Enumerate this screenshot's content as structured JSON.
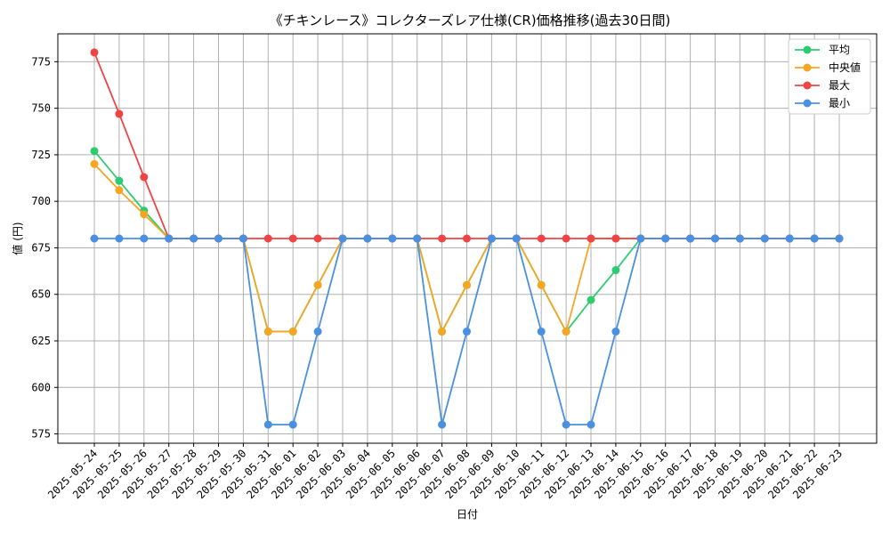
{
  "chart_data": {
    "type": "line",
    "title": "《チキンレース》コレクターズレア仕様(CR)価格推移(過去30日間)",
    "xlabel": "日付",
    "ylabel": "値 (円)",
    "ylim": [
      570,
      790
    ],
    "yticks": [
      575,
      600,
      625,
      650,
      675,
      700,
      725,
      750,
      775
    ],
    "grid": true,
    "legend_position": "top-right",
    "categories": [
      "2025-05-24",
      "2025-05-25",
      "2025-05-26",
      "2025-05-27",
      "2025-05-28",
      "2025-05-29",
      "2025-05-30",
      "2025-05-31",
      "2025-06-01",
      "2025-06-02",
      "2025-06-03",
      "2025-06-04",
      "2025-06-05",
      "2025-06-06",
      "2025-06-07",
      "2025-06-08",
      "2025-06-09",
      "2025-06-10",
      "2025-06-11",
      "2025-06-12",
      "2025-06-13",
      "2025-06-14",
      "2025-06-15",
      "2025-06-16",
      "2025-06-17",
      "2025-06-18",
      "2025-06-19",
      "2025-06-20",
      "2025-06-21",
      "2025-06-22",
      "2025-06-23"
    ],
    "series": [
      {
        "name": "平均",
        "color": "#2ecc71",
        "values": [
          727,
          711,
          695,
          680,
          680,
          680,
          680,
          630,
          630,
          655,
          680,
          680,
          680,
          680,
          630,
          655,
          680,
          680,
          655,
          630,
          647,
          663,
          680,
          680,
          680,
          680,
          680,
          680,
          680,
          680,
          680
        ]
      },
      {
        "name": "中央値",
        "color": "#f5a623",
        "values": [
          720,
          706,
          693,
          680,
          680,
          680,
          680,
          630,
          630,
          655,
          680,
          680,
          680,
          680,
          630,
          655,
          680,
          680,
          655,
          630,
          680,
          680,
          680,
          680,
          680,
          680,
          680,
          680,
          680,
          680,
          680
        ]
      },
      {
        "name": "最大",
        "color": "#ef4444",
        "values": [
          780,
          747,
          713,
          680,
          680,
          680,
          680,
          680,
          680,
          680,
          680,
          680,
          680,
          680,
          680,
          680,
          680,
          680,
          680,
          680,
          680,
          680,
          680,
          680,
          680,
          680,
          680,
          680,
          680,
          680,
          680
        ]
      },
      {
        "name": "最小",
        "color": "#4a90e2",
        "values": [
          680,
          680,
          680,
          680,
          680,
          680,
          680,
          580,
          580,
          630,
          680,
          680,
          680,
          680,
          580,
          630,
          680,
          680,
          630,
          580,
          580,
          630,
          680,
          680,
          680,
          680,
          680,
          680,
          680,
          680,
          680
        ]
      }
    ]
  }
}
